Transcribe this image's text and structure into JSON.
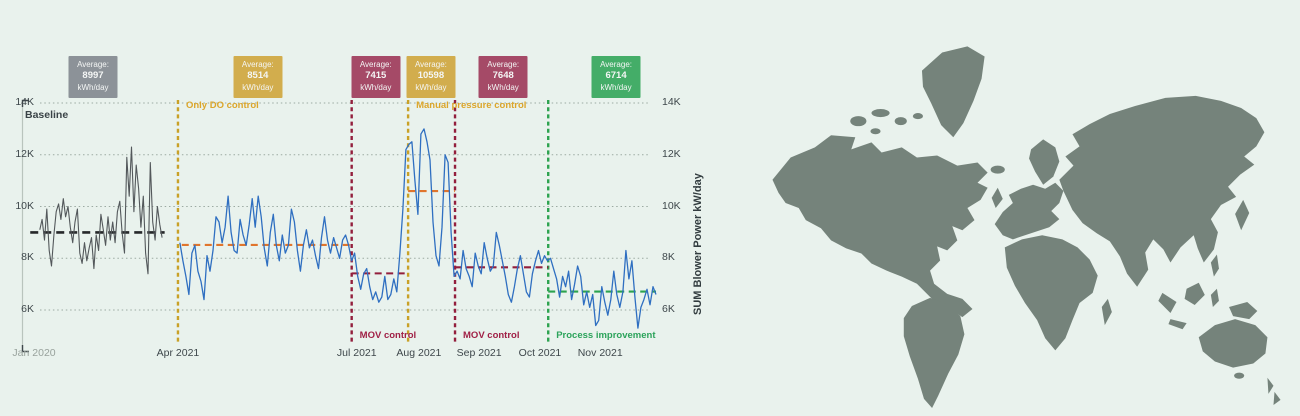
{
  "page": {
    "background": "#e9f2ed"
  },
  "chart": {
    "baseline_label": "Baseline"
  },
  "map": {
    "land_color": "#75837b"
  },
  "chart_data": {
    "type": "line",
    "title": "",
    "xlabel": "",
    "ylabel": "SUM Blower Power kW/day",
    "ylim": [
      5000,
      14200
    ],
    "grid": true,
    "legend_position": "none",
    "y_ticks": [
      6000,
      8000,
      10000,
      12000,
      14000
    ],
    "y_tick_labels": [
      "6K",
      "8K",
      "10K",
      "12K",
      "14K"
    ],
    "x_ticks": [
      {
        "label": "Jan 2020",
        "f": 0.019,
        "muted": true
      },
      {
        "label": "Apr 2021",
        "f": 0.246,
        "muted": false
      },
      {
        "label": "Jul 2021",
        "f": 0.528,
        "muted": false
      },
      {
        "label": "Aug 2021",
        "f": 0.626,
        "muted": false
      },
      {
        "label": "Sep 2021",
        "f": 0.721,
        "muted": false
      },
      {
        "label": "Oct 2021",
        "f": 0.817,
        "muted": false
      },
      {
        "label": "Nov 2021",
        "f": 0.912,
        "muted": false
      }
    ],
    "sections": [
      {
        "label": "Only DO control",
        "f": 0.246,
        "line_color": "#c9a127",
        "label_color": "#dca62b",
        "label_pos": "top"
      },
      {
        "label": "MOV control",
        "f": 0.52,
        "line_color": "#931f3d",
        "label_color": "#a02046",
        "label_pos": "bottom"
      },
      {
        "label": "Manual pressure control",
        "f": 0.609,
        "line_color": "#c9a127",
        "label_color": "#dca62b",
        "label_pos": "top"
      },
      {
        "label": "MOV control",
        "f": 0.683,
        "line_color": "#931f3d",
        "label_color": "#a02046",
        "label_pos": "bottom"
      },
      {
        "label": "Process improvement",
        "f": 0.83,
        "line_color": "#2ca34f",
        "label_color": "#2ca35b",
        "label_pos": "bottom"
      }
    ],
    "averages": [
      {
        "display": "8997",
        "value": 8997,
        "f0": 0.013,
        "f1": 0.225,
        "line_color": "#26282a",
        "badge_bg": "#8c9298",
        "badge_f": 0.112,
        "label_top": "Average:",
        "label_bottom": "kWh/day"
      },
      {
        "display": "8514",
        "value": 8514,
        "f0": 0.252,
        "f1": 0.518,
        "line_color": "#e0752d",
        "badge_bg": "#d2ad4d",
        "badge_f": 0.372,
        "label_top": "Average:",
        "label_bottom": "kWh/day"
      },
      {
        "display": "7415",
        "value": 7415,
        "f0": 0.52,
        "f1": 0.609,
        "line_color": "#931f3d",
        "badge_bg": "#a54a67",
        "badge_f": 0.558,
        "label_top": "Average:",
        "label_bottom": "kWh/day"
      },
      {
        "display": "10598",
        "value": 10598,
        "f0": 0.609,
        "f1": 0.683,
        "line_color": "#e0752d",
        "badge_bg": "#d2ad4d",
        "badge_f": 0.645,
        "label_top": "Average:",
        "label_bottom": "kWh/day"
      },
      {
        "display": "7648",
        "value": 7648,
        "f0": 0.683,
        "f1": 0.83,
        "line_color": "#931f3d",
        "badge_bg": "#a54a67",
        "badge_f": 0.759,
        "label_top": "Average:",
        "label_bottom": "kWh/day"
      },
      {
        "display": "6714",
        "value": 6714,
        "f0": 0.83,
        "f1": 1.0,
        "line_color": "#2ca34f",
        "badge_bg": "#44ad68",
        "badge_f": 0.937,
        "label_top": "Average:",
        "label_bottom": "kWh/day"
      }
    ],
    "series": [
      {
        "name": "Baseline",
        "color": "#53585b",
        "width": 1.1,
        "x0": 0.028,
        "x1": 0.221,
        "values": [
          9100,
          9500,
          8700,
          9900,
          8300,
          7700,
          8900,
          9800,
          10100,
          9500,
          10300,
          9600,
          10000,
          9200,
          8600,
          9400,
          9900,
          8200,
          7800,
          8600,
          7900,
          8400,
          8800,
          7600,
          8900,
          8300,
          9700,
          9100,
          8500,
          9600,
          8700,
          9400,
          8600,
          9800,
          10200,
          9000,
          8200,
          11900,
          10400,
          12300,
          9800,
          11600,
          10700,
          9200,
          10400,
          8200,
          7400,
          11700,
          9400,
          8700,
          10000,
          9300,
          8800
        ]
      },
      {
        "name": "SUM Blower Power",
        "color": "#2f6fc1",
        "width": 1.3,
        "x0": 0.249,
        "x1": 1.0,
        "values": [
          8600,
          7900,
          7300,
          6600,
          8200,
          8500,
          7500,
          7100,
          6400,
          8100,
          7500,
          8300,
          9600,
          9400,
          8600,
          9200,
          10400,
          9000,
          8300,
          8200,
          9500,
          8900,
          8500,
          9300,
          10300,
          9200,
          10400,
          9600,
          8400,
          7700,
          9000,
          9700,
          8500,
          7900,
          8900,
          8200,
          8500,
          9900,
          9400,
          8300,
          7500,
          8500,
          9100,
          8400,
          8700,
          8100,
          7600,
          8800,
          9600,
          8700,
          8200,
          8800,
          8400,
          8000,
          8700,
          8900,
          8500,
          7900,
          8200,
          7300,
          6800,
          7400,
          7600,
          6900,
          6400,
          6700,
          6300,
          6500,
          7300,
          6400,
          6600,
          7200,
          6700,
          8200,
          9900,
          12200,
          12400,
          12500,
          11000,
          9700,
          12800,
          13000,
          12500,
          11800,
          9400,
          8100,
          7700,
          9200,
          12000,
          11700,
          9000,
          7300,
          7500,
          7200,
          8300,
          7600,
          7300,
          6900,
          8200,
          7700,
          7400,
          8600,
          8000,
          7500,
          7700,
          9000,
          8500,
          7900,
          7300,
          6600,
          6300,
          6900,
          7600,
          8100,
          7400,
          6700,
          6500,
          7400,
          7900,
          8300,
          7800,
          8100,
          7900,
          8000,
          7600,
          7200,
          6500,
          7300,
          6900,
          7500,
          6400,
          7000,
          7700,
          7300,
          6200,
          6700,
          6100,
          6600,
          5400,
          5600,
          6900,
          6300,
          5800,
          6400,
          7500,
          6600,
          6100,
          6700,
          8300,
          7200,
          7900,
          6500,
          5300,
          6100,
          6400,
          6800,
          6200,
          6900,
          6600
        ]
      }
    ]
  }
}
